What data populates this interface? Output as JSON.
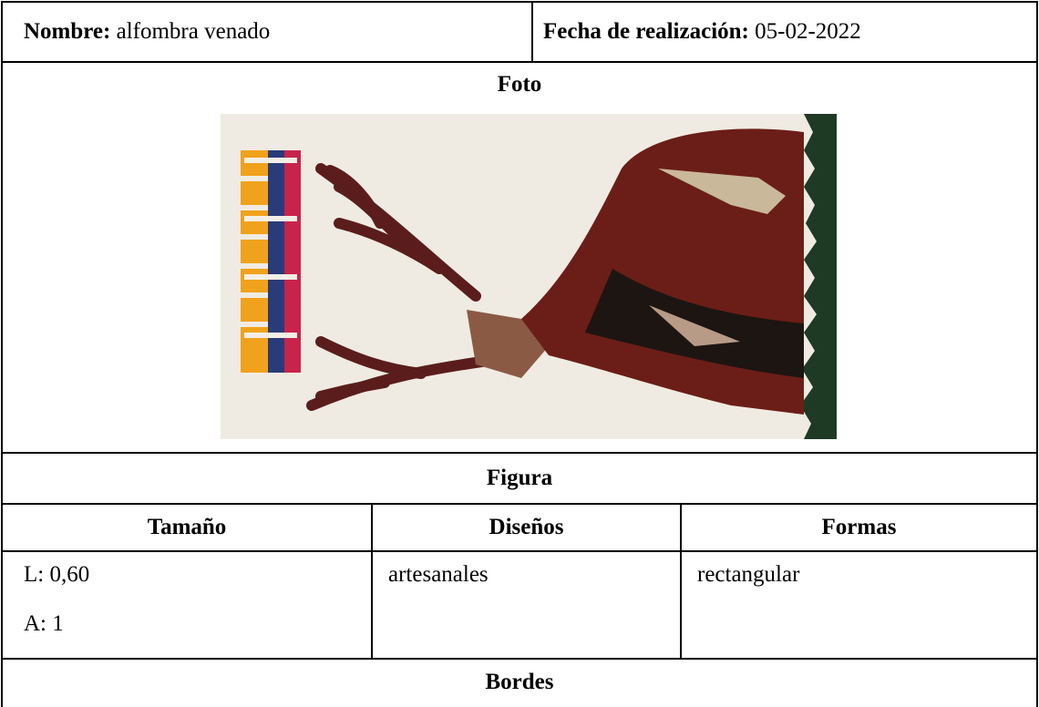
{
  "header": {
    "name_label": "Nombre:",
    "name": "alfombra venado",
    "date_label": "Fecha de realización:",
    "date": "05-02-2022"
  },
  "photo_label": "Foto",
  "figure_label": "Figura",
  "table": {
    "headers": [
      "Tamaño",
      "Diseños",
      "Formas"
    ],
    "tamano": [
      "L: 0,60",
      "A: 1"
    ],
    "disenos": "artesanales",
    "formas": "rectangular"
  },
  "borders_label": "Bordes"
}
